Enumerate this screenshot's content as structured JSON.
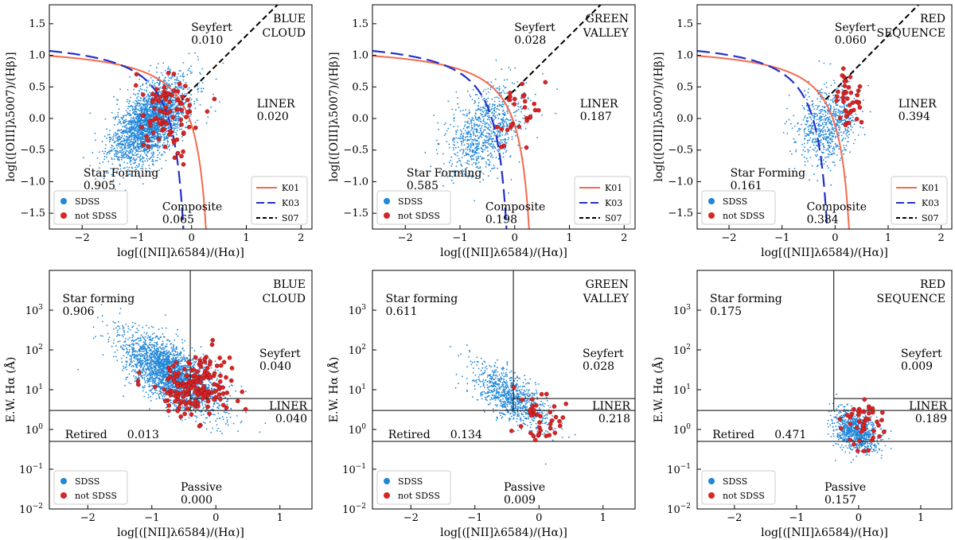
{
  "chart_data": [
    {
      "type": "scatter",
      "diagram": "BPT",
      "title_lines": [
        "BLUE",
        "CLOUD"
      ],
      "title_color": "#2b2bd9",
      "xlabel": "log[([NII]λ6584)/(Hα)]",
      "ylabel": "log[([OIII]λ5007)/(Hβ)]",
      "xlim": [
        -2.6,
        2.2
      ],
      "ylim": [
        -1.75,
        1.8
      ],
      "xticks": [
        -2,
        -1,
        0,
        1,
        2
      ],
      "yticks": [
        -1.5,
        -1.0,
        -0.5,
        0.0,
        0.5,
        1.0,
        1.5
      ],
      "regions": [
        {
          "name": "Seyfert",
          "fraction": "0.010"
        },
        {
          "name": "LINER",
          "fraction": "0.020"
        },
        {
          "name": "Star Forming",
          "fraction": "0.905"
        },
        {
          "name": "Composite",
          "fraction": "0.065"
        }
      ],
      "series_cloud": {
        "center": [
          -0.75,
          -0.05
        ],
        "spread": [
          0.35,
          0.28
        ],
        "slope": 0.55,
        "count": 2600
      },
      "series_red": {
        "center": [
          -0.45,
          0.0
        ],
        "spread": [
          0.3,
          0.35
        ],
        "count": 90
      },
      "legend": [
        {
          "label": "SDSS",
          "color": "#1f86d8"
        },
        {
          "label": "not SDSS",
          "color": "#d62728"
        }
      ],
      "lines_legend": [
        {
          "label": "K01",
          "color": "#f26b50",
          "style": "solid"
        },
        {
          "label": "K03",
          "color": "#2230c8",
          "style": "long-dash"
        },
        {
          "label": "S07",
          "color": "#000000",
          "style": "dash"
        }
      ]
    },
    {
      "type": "scatter",
      "diagram": "BPT",
      "title_lines": [
        "GREEN",
        "VALLEY"
      ],
      "title_color": "#1e8c1e",
      "xlabel": "log[([NII]λ6584)/(Hα)]",
      "ylabel": "log[([OIII]λ5007)/(Hβ)]",
      "xlim": [
        -2.6,
        2.2
      ],
      "ylim": [
        -1.75,
        1.8
      ],
      "xticks": [
        -2,
        -1,
        0,
        1,
        2
      ],
      "yticks": [
        -1.5,
        -1.0,
        -0.5,
        0.0,
        0.5,
        1.0,
        1.5
      ],
      "regions": [
        {
          "name": "Seyfert",
          "fraction": "0.028"
        },
        {
          "name": "LINER",
          "fraction": "0.187"
        },
        {
          "name": "Star Forming",
          "fraction": "0.585"
        },
        {
          "name": "Composite",
          "fraction": "0.198"
        }
      ],
      "series_cloud": {
        "center": [
          -0.55,
          -0.2
        ],
        "spread": [
          0.35,
          0.32
        ],
        "slope": 0.35,
        "count": 900
      },
      "series_red": {
        "center": [
          0.1,
          0.15
        ],
        "spread": [
          0.22,
          0.25
        ],
        "count": 30
      },
      "legend": [
        {
          "label": "SDSS",
          "color": "#1f86d8"
        },
        {
          "label": "not SDSS",
          "color": "#d62728"
        }
      ],
      "lines_legend": [
        {
          "label": "K01",
          "color": "#f26b50",
          "style": "solid"
        },
        {
          "label": "K03",
          "color": "#2230c8",
          "style": "long-dash"
        },
        {
          "label": "S07",
          "color": "#000000",
          "style": "dash"
        }
      ]
    },
    {
      "type": "scatter",
      "diagram": "BPT",
      "title_lines": [
        "RED",
        "SEQUENCE"
      ],
      "title_color": "#e8302a",
      "xlabel": "log[([NII]λ6584)/(Hα)]",
      "ylabel": "log[([OIII]λ5007)/(Hβ)]",
      "xlim": [
        -2.6,
        2.2
      ],
      "ylim": [
        -1.75,
        1.8
      ],
      "xticks": [
        -2,
        -1,
        0,
        1,
        2
      ],
      "yticks": [
        -1.5,
        -1.0,
        -0.5,
        0.0,
        0.5,
        1.0,
        1.5
      ],
      "regions": [
        {
          "name": "Seyfert",
          "fraction": "0.060"
        },
        {
          "name": "LINER",
          "fraction": "0.394"
        },
        {
          "name": "Star Forming",
          "fraction": "0.161"
        },
        {
          "name": "Composite",
          "fraction": "0.384"
        }
      ],
      "series_cloud": {
        "center": [
          -0.15,
          -0.1
        ],
        "spread": [
          0.28,
          0.3
        ],
        "slope": 0.2,
        "count": 700
      },
      "series_red": {
        "center": [
          0.2,
          0.3
        ],
        "spread": [
          0.15,
          0.2
        ],
        "count": 40
      },
      "legend": [
        {
          "label": "SDSS",
          "color": "#1f86d8"
        },
        {
          "label": "not SDSS",
          "color": "#d62728"
        }
      ],
      "lines_legend": [
        {
          "label": "K01",
          "color": "#f26b50",
          "style": "solid"
        },
        {
          "label": "K03",
          "color": "#2230c8",
          "style": "long-dash"
        },
        {
          "label": "S07",
          "color": "#000000",
          "style": "dash"
        }
      ]
    },
    {
      "type": "scatter",
      "diagram": "WHAN",
      "title_lines": [
        "BLUE",
        "CLOUD"
      ],
      "title_color": "#2b2bd9",
      "xlabel": "log[([NII]λ6584)/(Hα)]",
      "ylabel": "E.W. Hα (Å)",
      "xlim": [
        -2.6,
        1.5
      ],
      "ylim_log10": [
        -2,
        4
      ],
      "xticks": [
        -2,
        -1,
        0,
        1
      ],
      "yticks_exp": [
        -2,
        -1,
        0,
        1,
        2,
        3
      ],
      "regions": [
        {
          "name": "Star forming",
          "fraction": "0.906"
        },
        {
          "name": "Seyfert",
          "fraction": "0.040"
        },
        {
          "name": "LINER",
          "fraction": "0.040"
        },
        {
          "name": "Retired",
          "fraction": "0.013"
        },
        {
          "name": "Passive",
          "fraction": "0.000"
        }
      ],
      "series_cloud": {
        "center": [
          -0.7,
          1.4
        ],
        "spread": [
          0.38,
          0.38
        ],
        "slope": -0.85,
        "count": 2600
      },
      "series_red": {
        "center": [
          -0.3,
          1.1
        ],
        "spread": [
          0.3,
          0.4
        ],
        "count": 170
      },
      "legend": [
        {
          "label": "SDSS",
          "color": "#1f86d8"
        },
        {
          "label": "not SDSS",
          "color": "#d62728"
        }
      ]
    },
    {
      "type": "scatter",
      "diagram": "WHAN",
      "title_lines": [
        "GREEN",
        "VALLEY"
      ],
      "title_color": "#1e8c1e",
      "xlabel": "log[([NII]λ6584)/(Hα)]",
      "ylabel": "E.W. Hα (Å)",
      "xlim": [
        -2.6,
        1.5
      ],
      "ylim_log10": [
        -2,
        4
      ],
      "xticks": [
        -2,
        -1,
        0,
        1
      ],
      "yticks_exp": [
        -2,
        -1,
        0,
        1,
        2,
        3
      ],
      "regions": [
        {
          "name": "Star forming",
          "fraction": "0.611"
        },
        {
          "name": "Seyfert",
          "fraction": "0.028"
        },
        {
          "name": "LINER",
          "fraction": "0.218"
        },
        {
          "name": "Retired",
          "fraction": "0.134"
        },
        {
          "name": "Passive",
          "fraction": "0.009"
        }
      ],
      "series_cloud": {
        "center": [
          -0.45,
          0.85
        ],
        "spread": [
          0.3,
          0.3
        ],
        "slope": -0.85,
        "count": 900
      },
      "series_red": {
        "center": [
          0.0,
          0.35
        ],
        "spread": [
          0.2,
          0.3
        ],
        "count": 40
      },
      "legend": [
        {
          "label": "SDSS",
          "color": "#1f86d8"
        },
        {
          "label": "not SDSS",
          "color": "#d62728"
        }
      ]
    },
    {
      "type": "scatter",
      "diagram": "WHAN",
      "title_lines": [
        "RED",
        "SEQUENCE"
      ],
      "title_color": "#e8302a",
      "xlabel": "log[([NII]λ6584)/(Hα)]",
      "ylabel": "E.W. Hα (Å)",
      "xlim": [
        -2.6,
        1.5
      ],
      "ylim_log10": [
        -2,
        4
      ],
      "xticks": [
        -2,
        -1,
        0,
        1
      ],
      "yticks_exp": [
        -2,
        -1,
        0,
        1,
        2,
        3
      ],
      "regions": [
        {
          "name": "Star forming",
          "fraction": "0.175"
        },
        {
          "name": "Seyfert",
          "fraction": "0.009"
        },
        {
          "name": "LINER",
          "fraction": "0.189"
        },
        {
          "name": "Retired",
          "fraction": "0.471"
        },
        {
          "name": "Passive",
          "fraction": "0.157"
        }
      ],
      "series_cloud": {
        "center": [
          -0.05,
          -0.05
        ],
        "spread": [
          0.18,
          0.25
        ],
        "slope": -0.5,
        "count": 900
      },
      "series_red": {
        "center": [
          0.05,
          0.15
        ],
        "spread": [
          0.18,
          0.3
        ],
        "count": 45
      },
      "legend": [
        {
          "label": "SDSS",
          "color": "#1f86d8"
        },
        {
          "label": "not SDSS",
          "color": "#d62728"
        }
      ]
    }
  ]
}
